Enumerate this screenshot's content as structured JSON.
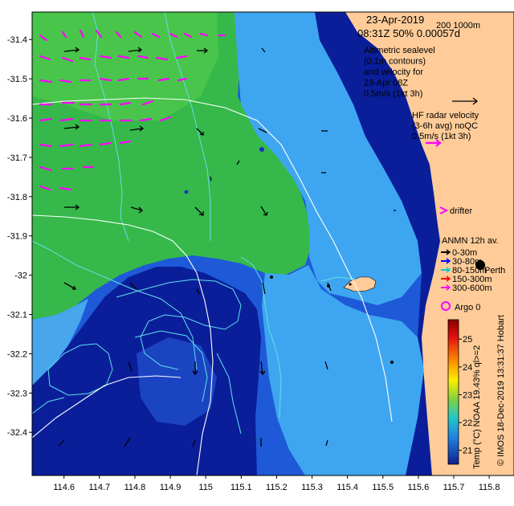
{
  "map": {
    "date": "23-Apr-2019",
    "time_coverage": "08:31Z  50% 0.00057d",
    "depth_contours": "200  1000m",
    "sealevel_lines": [
      "Altimetric sealevel",
      "(0.1m contours)",
      "and velocity for",
      "23-Apr 08Z",
      "0.5m/s (1kt 3h)"
    ],
    "hf_radar_lines": [
      "HF radar velocity",
      "(3-6h avg) noQC",
      "0.5m/s (1kt 3h)"
    ],
    "drifter_label": "drifter",
    "anmn_title": "ANMN 12h av.",
    "anmn_items": [
      {
        "label": "0-30m",
        "color": "#000000"
      },
      {
        "label": "30-80m",
        "color": "#0000ff"
      },
      {
        "label": "80-150m",
        "color": "#00cccc"
      },
      {
        "label": "150-300m",
        "color": "#ff0000"
      },
      {
        "label": "300-600m",
        "color": "#ff00ff"
      }
    ],
    "argo_label": "Argo 0",
    "city_label": "Perth",
    "place_label": "Hobart",
    "colorbar_caption": "Temp (°C) NOAA 19.43% ql>=2",
    "credit": "© IMOS 18-Dec-2019 13:31:37 Hobart",
    "colorbar_ticks": [
      "25",
      "24",
      "23",
      "22",
      "21"
    ],
    "x_ticks": [
      "114.6",
      "114.7",
      "114.8",
      "114.9",
      "115",
      "115.1",
      "115.2",
      "115.3",
      "115.4",
      "115.5",
      "115.6",
      "115.7",
      "115.8"
    ],
    "y_ticks": [
      "-31.4",
      "-31.5",
      "-31.6",
      "-31.7",
      "-31.8",
      "-31.9",
      "-32",
      "-32.1",
      "-32.2",
      "-32.3",
      "-32.4"
    ],
    "x_tick_values": [
      114.6,
      114.7,
      114.8,
      114.9,
      115.0,
      115.1,
      115.2,
      115.3,
      115.4,
      115.5,
      115.6,
      115.7,
      115.8
    ],
    "y_tick_values": [
      -31.4,
      -31.5,
      -31.6,
      -31.7,
      -31.8,
      -31.9,
      -32.0,
      -32.1,
      -32.2,
      -32.3,
      -32.4
    ],
    "lon_range": [
      114.51,
      115.87
    ],
    "lat_range": [
      -32.51,
      -31.33
    ],
    "temp_range": [
      20.5,
      25.7
    ],
    "colors": {
      "land": "#ffcc99",
      "deep_blue": "#0a1e9a",
      "mid_blue": "#1e5ad8",
      "light_blue": "#3ea6f0",
      "green": "#36b94a",
      "contour": "#5fe0e8",
      "isobath": "#ffffff",
      "hf_arrow": "#ff00ff",
      "current_arrow": "#000000"
    }
  }
}
